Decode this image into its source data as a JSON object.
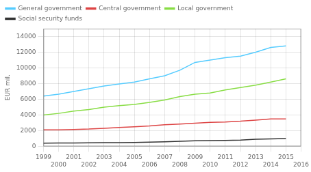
{
  "chart_data": {
    "type": "line",
    "ylabel": "EUR mil.",
    "x": [
      1999,
      2000,
      2001,
      2002,
      2003,
      2004,
      2005,
      2006,
      2007,
      2008,
      2009,
      2010,
      2011,
      2012,
      2013,
      2014,
      2015
    ],
    "series": [
      {
        "name": "General government",
        "color": "#55ccff",
        "values": [
          6400,
          6650,
          7000,
          7350,
          7700,
          7950,
          8200,
          8600,
          9000,
          9700,
          10700,
          11000,
          11300,
          11500,
          12000,
          12600,
          12800
        ]
      },
      {
        "name": "Central government",
        "color": "#dd4444",
        "values": [
          2100,
          2100,
          2150,
          2200,
          2300,
          2400,
          2500,
          2600,
          2750,
          2850,
          2950,
          3050,
          3100,
          3200,
          3350,
          3500,
          3500
        ]
      },
      {
        "name": "Local government",
        "color": "#88dd44",
        "values": [
          4000,
          4200,
          4500,
          4700,
          5000,
          5200,
          5350,
          5600,
          5900,
          6350,
          6650,
          6800,
          7200,
          7500,
          7800,
          8200,
          8600
        ]
      },
      {
        "name": "Social security funds",
        "color": "#333333",
        "values": [
          400,
          420,
          430,
          450,
          460,
          480,
          500,
          530,
          580,
          650,
          700,
          720,
          750,
          800,
          900,
          950,
          1000
        ]
      }
    ],
    "xlim": [
      1999,
      2016
    ],
    "xticks": [
      1999,
      2000,
      2001,
      2002,
      2003,
      2004,
      2005,
      2006,
      2007,
      2008,
      2009,
      2010,
      2011,
      2012,
      2013,
      2014,
      2015,
      2016
    ],
    "ylim": [
      0,
      15000
    ],
    "yticks": [
      0,
      2000,
      4000,
      6000,
      8000,
      10000,
      12000,
      14000
    ],
    "grid": true,
    "legend": "upper left"
  }
}
